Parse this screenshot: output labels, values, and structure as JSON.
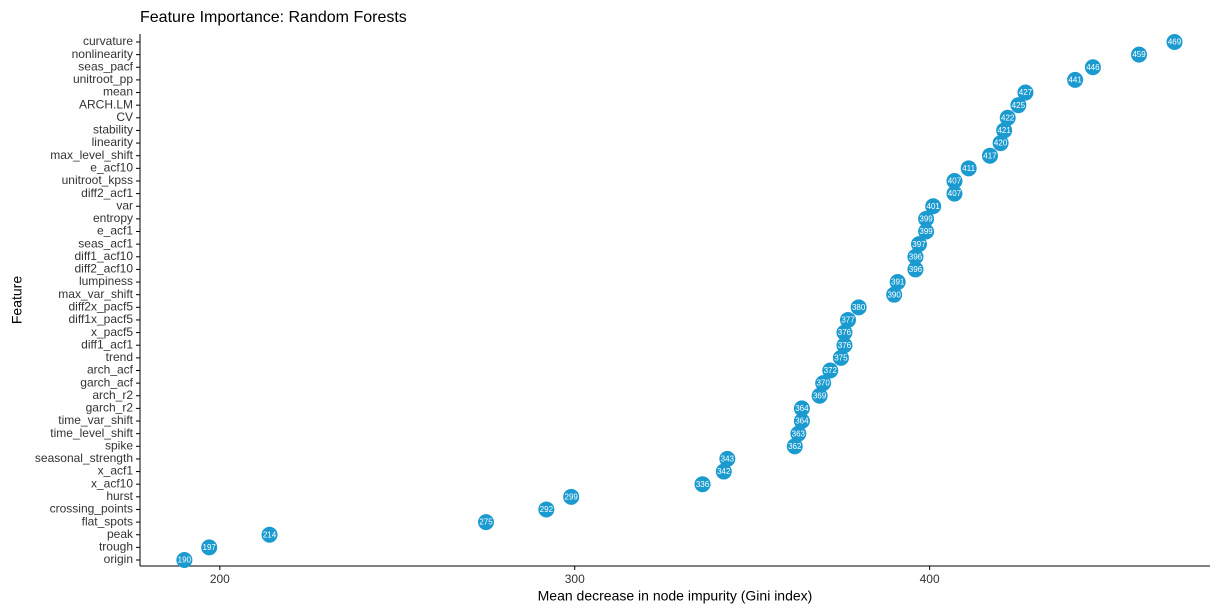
{
  "chart_data": {
    "type": "dot",
    "title": "Feature Importance: Random Forests",
    "x_label": "Mean decrease in node impurity (Gini index)",
    "y_label": "Feature",
    "categories": [
      "curvature",
      "nonlinearity",
      "seas_pacf",
      "unitroot_pp",
      "mean",
      "ARCH.LM",
      "CV",
      "stability",
      "linearity",
      "max_level_shift",
      "e_acf10",
      "unitroot_kpss",
      "diff2_acf1",
      "var",
      "entropy",
      "e_acf1",
      "seas_acf1",
      "diff1_acf10",
      "diff2_acf10",
      "lumpiness",
      "max_var_shift",
      "diff2x_pacf5",
      "diff1x_pacf5",
      "x_pacf5",
      "diff1_acf1",
      "trend",
      "arch_acf",
      "garch_acf",
      "arch_r2",
      "garch_r2",
      "time_var_shift",
      "time_level_shift",
      "spike",
      "seasonal_strength",
      "x_acf1",
      "x_acf10",
      "hurst",
      "crossing_points",
      "flat_spots",
      "peak",
      "trough",
      "origin"
    ],
    "values": [
      469,
      459,
      446,
      441,
      427,
      425,
      422,
      421,
      420,
      417,
      411,
      407,
      407,
      401,
      399,
      399,
      397,
      396,
      396,
      391,
      390,
      380,
      377,
      376,
      376,
      375,
      372,
      370,
      369,
      364,
      364,
      363,
      362,
      343,
      342,
      336,
      299,
      292,
      275,
      214,
      197,
      190
    ],
    "color": "#1b9ad0",
    "xlim": [
      177.5,
      479
    ],
    "xticks": [
      200,
      300,
      400
    ]
  }
}
